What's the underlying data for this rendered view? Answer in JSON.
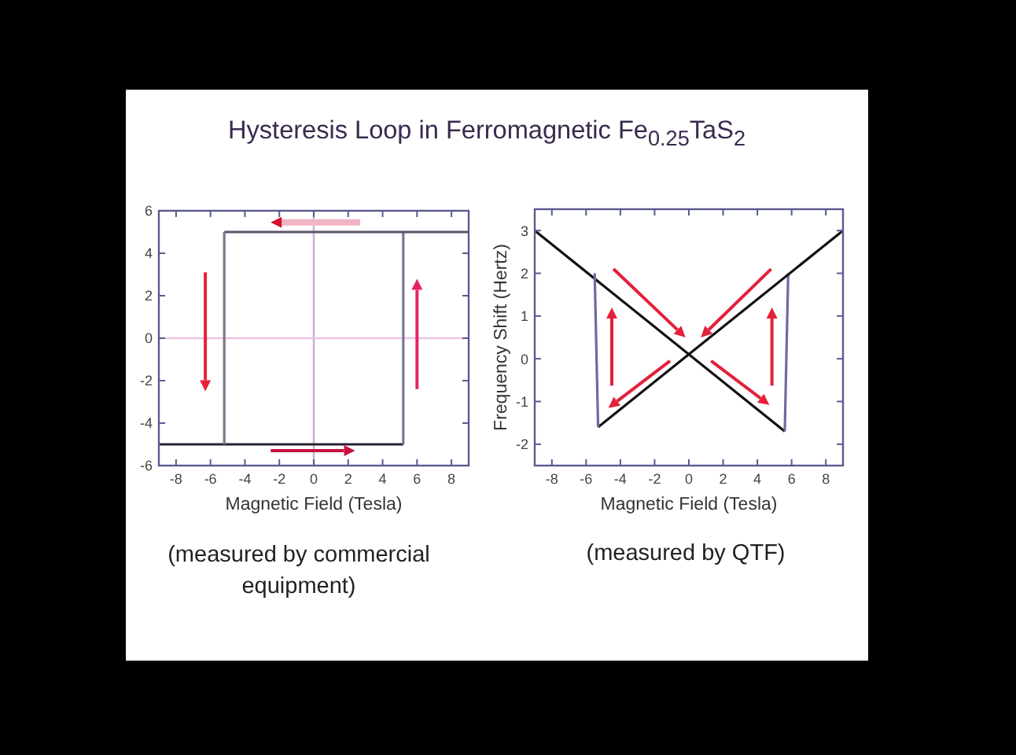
{
  "chart_data": [
    {
      "type": "line",
      "title": "Hysteresis Loop in Ferromagnetic Fe$_{0.25}$TaS$_{2}$",
      "xlabel": "Magnetic Field (Tesla)",
      "annotations": [
        "(measured by commercial equipment)"
      ],
      "xlim": [
        -9,
        9
      ],
      "xticks": [
        -8,
        -6,
        -4,
        -2,
        0,
        2,
        4,
        6,
        8
      ],
      "ylim": [
        -6,
        6
      ],
      "yticks": [
        -6,
        -4,
        -2,
        0,
        2,
        4,
        6
      ],
      "ref_lines": [
        {
          "axis": "x",
          "value": 0,
          "color": "#cfa9d6"
        },
        {
          "axis": "y",
          "value": 0,
          "color": "#ebc3e2"
        }
      ],
      "series": [
        {
          "color": "#2b2333",
          "x": [
            -9,
            5.2
          ],
          "values": [
            -5,
            -5
          ]
        },
        {
          "color": "#7d7590",
          "x": [
            5.2,
            5.2
          ],
          "values": [
            -5,
            5
          ]
        },
        {
          "color": "#5c5468",
          "x": [
            -5.2,
            9
          ],
          "values": [
            5,
            5
          ]
        },
        {
          "color": "#7d7590",
          "x": [
            -5.2,
            -5.2
          ],
          "values": [
            5,
            -5
          ]
        }
      ]
    },
    {
      "type": "line",
      "xlabel": "Magnetic Field (Tesla)",
      "ylabel": "Frequency Shift (Hertz)",
      "annotations": [
        "(measured by QTF)"
      ],
      "xlim": [
        -9,
        9
      ],
      "xticks": [
        -8,
        -6,
        -4,
        -2,
        0,
        2,
        4,
        6,
        8
      ],
      "ylim": [
        -2.5,
        3.5
      ],
      "yticks": [
        -2,
        -1,
        0,
        1,
        2,
        3
      ],
      "series": [
        {
          "color": "#111111",
          "x": [
            -9,
            5.6
          ],
          "values": [
            3,
            -1.7
          ]
        },
        {
          "color": "#6c6ca0",
          "x": [
            5.6,
            5.8
          ],
          "values": [
            -1.7,
            2
          ]
        },
        {
          "color": "#111111",
          "x": [
            -5.3,
            9
          ],
          "values": [
            -1.6,
            3
          ]
        },
        {
          "color": "#6c6ca0",
          "x": [
            -5.5,
            -5.3
          ],
          "values": [
            2,
            -1.6
          ]
        }
      ]
    }
  ]
}
